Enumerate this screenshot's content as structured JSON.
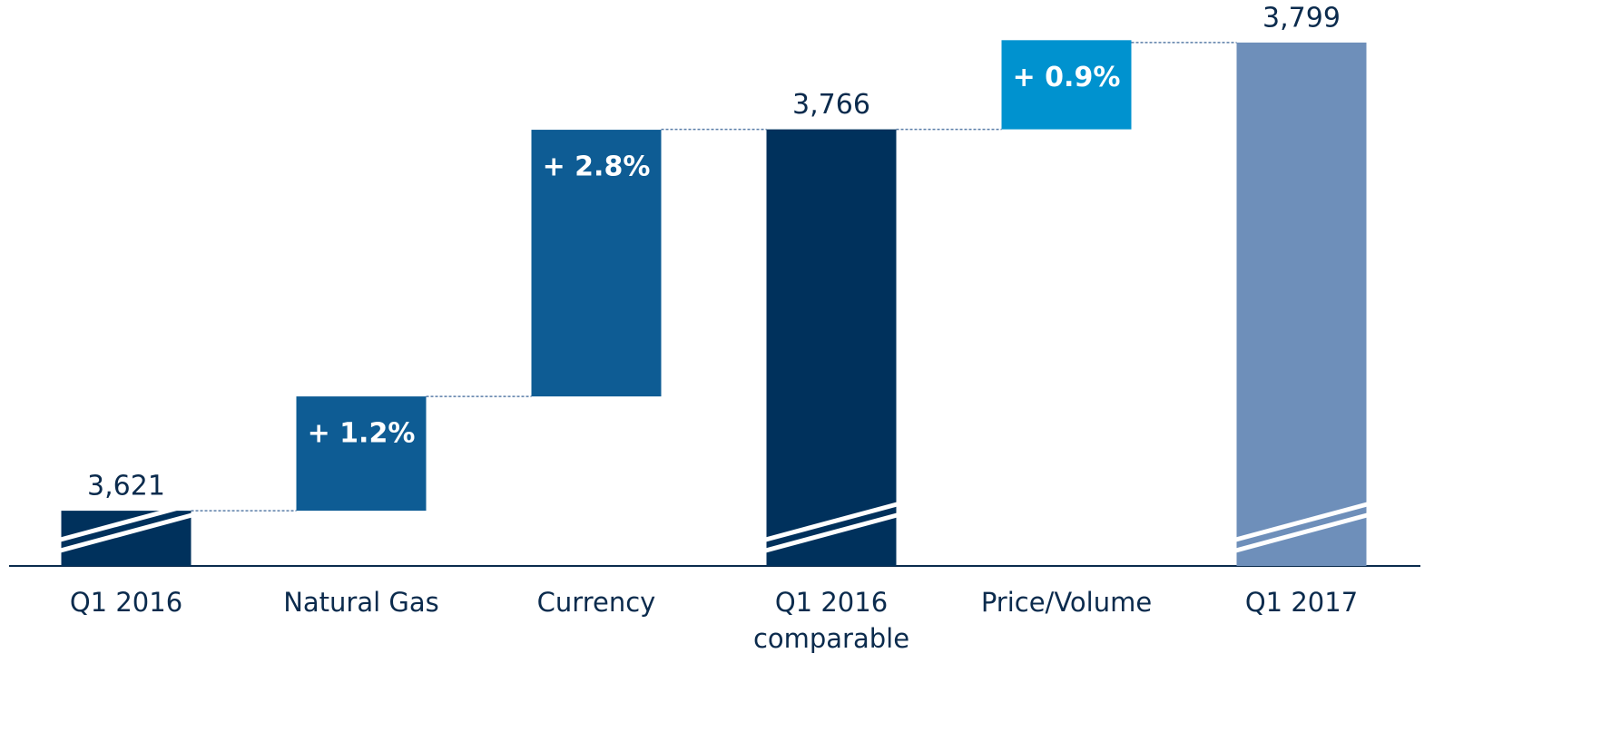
{
  "chart_data": {
    "type": "waterfall",
    "categories": [
      "Q1 2016",
      "Natural Gas",
      "Currency",
      "Q1 2016 comparable",
      "Price/Volume",
      "Q1 2017"
    ],
    "measure": [
      "total",
      "relative",
      "relative",
      "total",
      "relative",
      "total"
    ],
    "values": [
      3621,
      1.2,
      2.8,
      3766,
      0.9,
      3799
    ],
    "value_labels": [
      "3,621",
      "+ 1.2%",
      "+ 2.8%",
      "3,766",
      "+ 0.9%",
      "3,799"
    ],
    "colors": [
      "#00315c",
      "#0e5c94",
      "#0e5c94",
      "#00315c",
      "#0092cf",
      "#6e8fba"
    ],
    "ylim": [
      3600,
      3800
    ]
  }
}
